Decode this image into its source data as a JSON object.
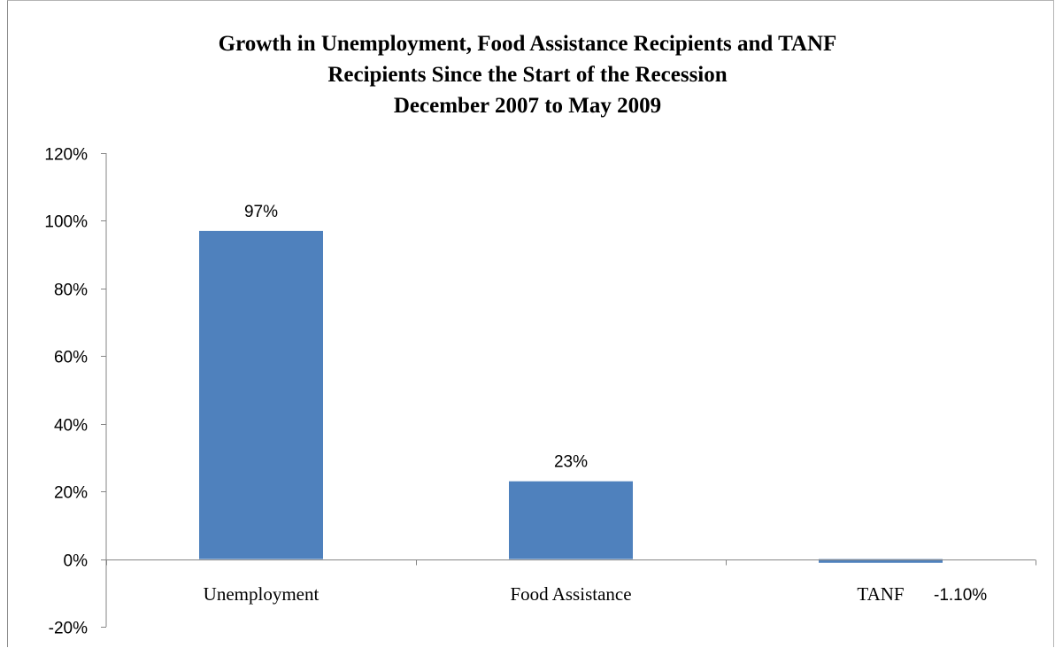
{
  "chart_data": {
    "type": "bar",
    "title_lines": [
      "Growth in Unemployment, Food Assistance Recipients and TANF",
      "Recipients Since the Start of the Recession",
      "December 2007 to May 2009"
    ],
    "categories": [
      "Unemployment",
      "Food Assistance",
      "TANF"
    ],
    "values": [
      97,
      23,
      -1.1
    ],
    "data_labels": [
      "97%",
      "23%",
      "-1.10%"
    ],
    "ylim": [
      -20,
      120
    ],
    "yticks": [
      -20,
      0,
      20,
      40,
      60,
      80,
      100,
      120
    ],
    "ytick_labels": [
      "-20%",
      "0%",
      "20%",
      "40%",
      "60%",
      "80%",
      "100%",
      "120%"
    ],
    "bar_color": "#4f81bd",
    "axis_color": "#868686",
    "legend": "none",
    "grid": false
  }
}
